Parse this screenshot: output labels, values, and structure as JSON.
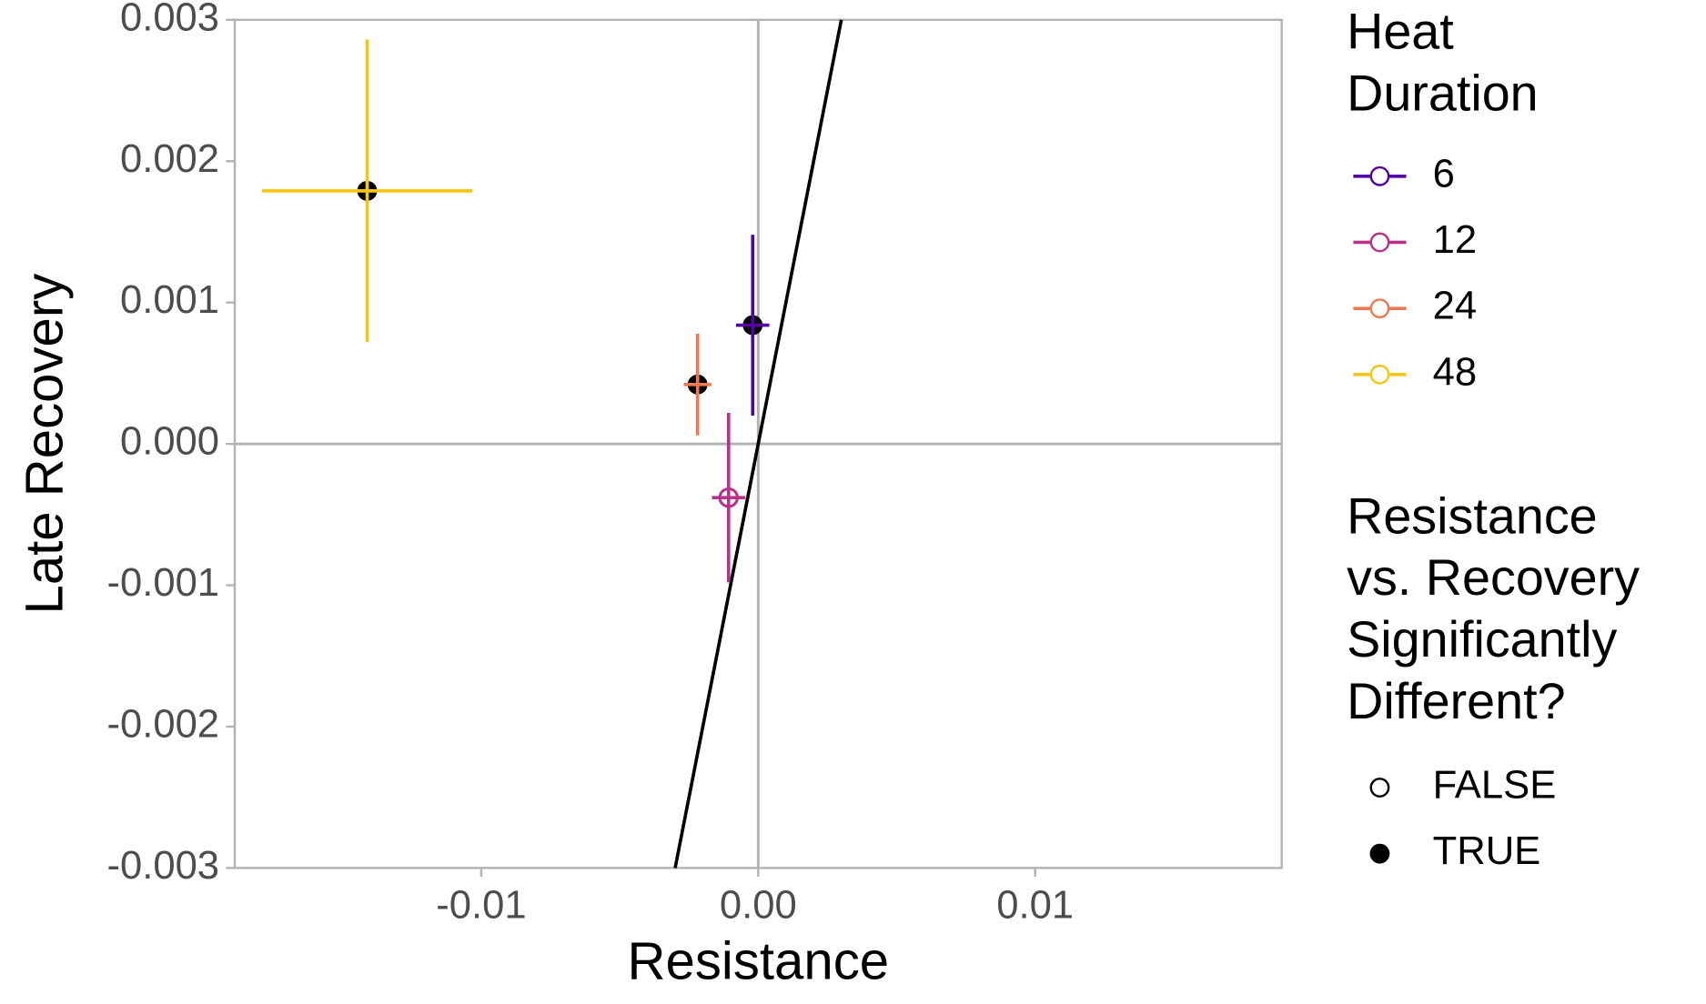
{
  "chart_data": {
    "type": "errorbar-scatter",
    "x_label": "Resistance",
    "y_label": "Late Recovery",
    "xlim": [
      -0.0189,
      0.0189
    ],
    "ylim": [
      -0.003,
      0.003
    ],
    "xticks": [
      -0.01,
      {
        "value": 0,
        "label": "0.00"
      },
      0.01
    ],
    "yticks": [
      -0.003,
      -0.002,
      -0.001,
      {
        "value": 0,
        "label": "0.000"
      },
      0.001,
      0.002,
      0.003
    ],
    "zero_lines": true,
    "reference_line": {
      "slope": 1,
      "intercept": 0,
      "color": "#000000"
    },
    "color_legend_title": [
      "Heat",
      "Duration"
    ],
    "shape_legend_title": [
      "Resistance",
      "vs. Recovery",
      "Significantly",
      "Different?"
    ],
    "shape_legend_labels": [
      "FALSE",
      "TRUE"
    ],
    "series": [
      {
        "name": "6",
        "color": "#5402a3",
        "x": -0.0002,
        "y": 0.00084,
        "xerr": 0.0006,
        "yerr": 0.00064,
        "significant": true
      },
      {
        "name": "12",
        "color": "#b93289",
        "x": -0.00107,
        "y": -0.00038,
        "xerr": 0.0006,
        "yerr": 0.0006,
        "significant": false
      },
      {
        "name": "24",
        "color": "#ed7953",
        "x": -0.00219,
        "y": 0.00042,
        "xerr": 0.0005,
        "yerr": 0.00036,
        "significant": true
      },
      {
        "name": "48",
        "color": "#f5c518",
        "x": -0.01412,
        "y": 0.00179,
        "xerr": 0.0038,
        "yerr": 0.00107,
        "significant": true
      }
    ]
  }
}
